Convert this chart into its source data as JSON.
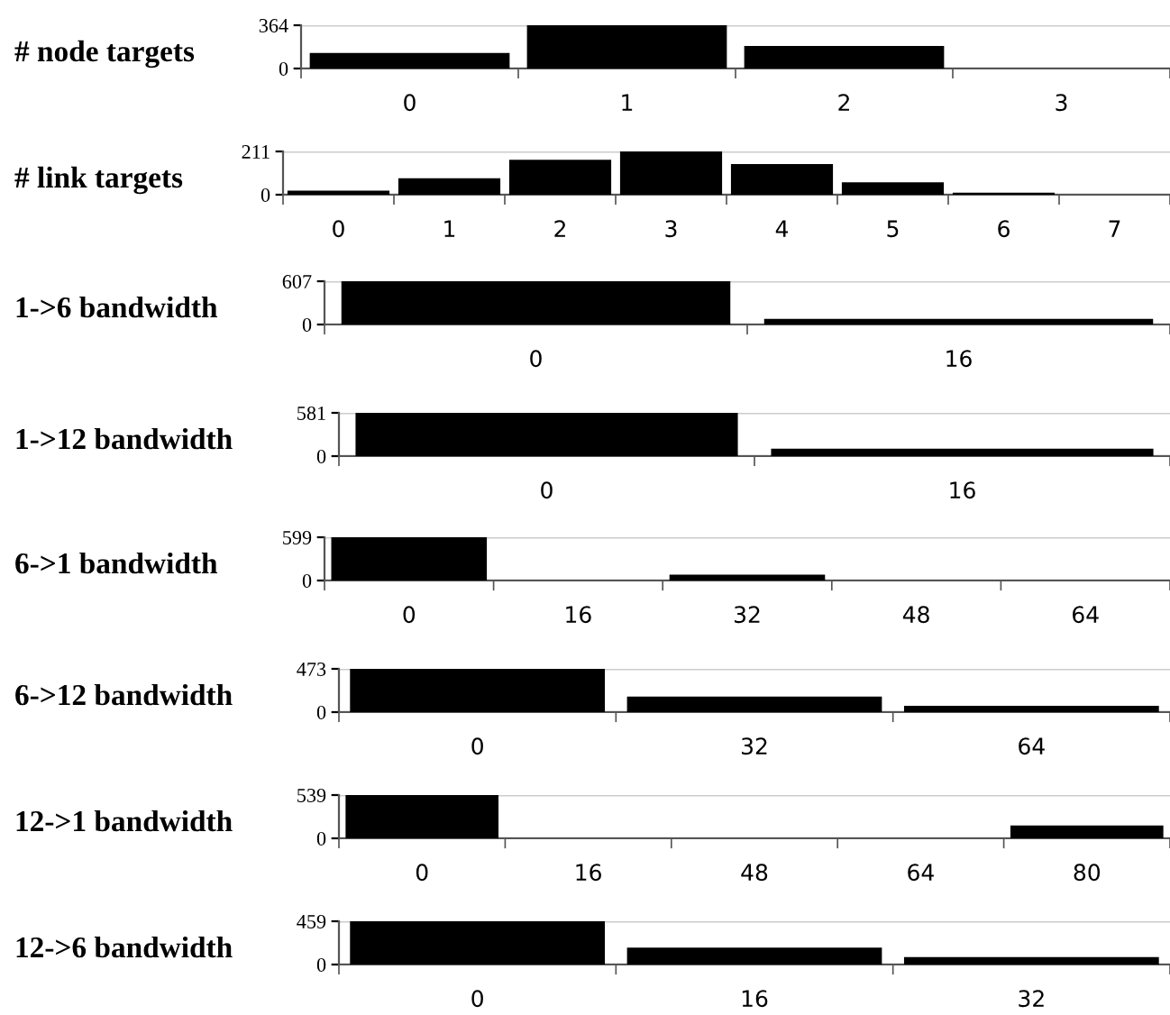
{
  "chart_data": [
    {
      "type": "bar",
      "title": "# node targets",
      "categories": [
        "0",
        "1",
        "2",
        "3"
      ],
      "values": [
        130,
        364,
        190,
        0
      ],
      "color": "#000000",
      "ylim": [
        0,
        364
      ],
      "yticks": [
        0,
        364
      ],
      "grid": "y"
    },
    {
      "type": "bar",
      "title": "# link targets",
      "categories": [
        "0",
        "1",
        "2",
        "3",
        "4",
        "5",
        "6",
        "7"
      ],
      "values": [
        20,
        80,
        170,
        211,
        150,
        60,
        10,
        0
      ],
      "color": "#000000",
      "ylim": [
        0,
        211
      ],
      "yticks": [
        0,
        211
      ],
      "grid": "y"
    },
    {
      "type": "bar",
      "title": "1->6 bandwidth",
      "categories": [
        "0",
        "16"
      ],
      "values": [
        607,
        80
      ],
      "color": "#000000",
      "ylim": [
        0,
        607
      ],
      "yticks": [
        0,
        607
      ],
      "grid": "y"
    },
    {
      "type": "bar",
      "title": "1->12 bandwidth",
      "categories": [
        "0",
        "16"
      ],
      "values": [
        581,
        100
      ],
      "color": "#000000",
      "ylim": [
        0,
        581
      ],
      "yticks": [
        0,
        581
      ],
      "grid": "y"
    },
    {
      "type": "bar",
      "title": "6->1 bandwidth",
      "categories": [
        "0",
        "16",
        "32",
        "48",
        "64"
      ],
      "values": [
        599,
        0,
        80,
        0,
        0
      ],
      "color": "#000000",
      "ylim": [
        0,
        599
      ],
      "yticks": [
        0,
        599
      ],
      "grid": "y"
    },
    {
      "type": "bar",
      "title": "6->12 bandwidth",
      "categories": [
        "0",
        "32",
        "64"
      ],
      "values": [
        473,
        170,
        70
      ],
      "color": "#000000",
      "ylim": [
        0,
        473
      ],
      "yticks": [
        0,
        473
      ],
      "grid": "y"
    },
    {
      "type": "bar",
      "title": "12->1 bandwidth",
      "categories": [
        "0",
        "16",
        "48",
        "64",
        "80"
      ],
      "values": [
        539,
        0,
        0,
        0,
        160
      ],
      "color": "#000000",
      "ylim": [
        0,
        539
      ],
      "yticks": [
        0,
        539
      ],
      "grid": "y"
    },
    {
      "type": "bar",
      "title": "12->6 bandwidth",
      "categories": [
        "0",
        "16",
        "32"
      ],
      "values": [
        459,
        180,
        80
      ],
      "color": "#000000",
      "ylim": [
        0,
        459
      ],
      "yticks": [
        0,
        459
      ],
      "grid": "y"
    }
  ]
}
